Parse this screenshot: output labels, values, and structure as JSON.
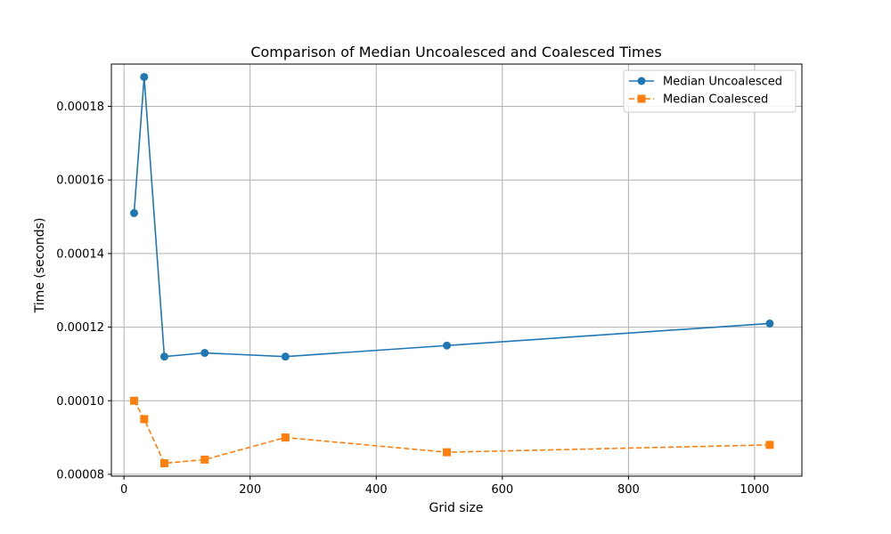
{
  "chart_data": {
    "type": "line",
    "title": "Comparison of Median Uncoalesced and Coalesced Times",
    "xlabel": "Grid size",
    "ylabel": "Time (seconds)",
    "xlim": [
      -20,
      1075
    ],
    "ylim": [
      7.95e-05,
      0.0001915
    ],
    "xticks": [
      0,
      200,
      400,
      600,
      800,
      1000
    ],
    "xtick_labels": [
      "0",
      "200",
      "400",
      "600",
      "800",
      "1000"
    ],
    "yticks": [
      8e-05,
      0.0001,
      0.00012,
      0.00014,
      0.00016,
      0.00018
    ],
    "ytick_labels": [
      "0.00008",
      "0.00010",
      "0.00012",
      "0.00014",
      "0.00016",
      "0.00018"
    ],
    "grid": true,
    "legend_position": "top-right",
    "series": [
      {
        "name": "Median Uncoalesced",
        "color": "#1f77b4",
        "marker": "circle",
        "line_style": "solid",
        "x": [
          16,
          32,
          64,
          128,
          256,
          512,
          1024
        ],
        "y": [
          0.000151,
          0.000188,
          0.000112,
          0.000113,
          0.000112,
          0.000115,
          0.000121
        ]
      },
      {
        "name": "Median Coalesced",
        "color": "#ff7f0e",
        "marker": "square",
        "line_style": "dashed",
        "x": [
          16,
          32,
          64,
          128,
          256,
          512,
          1024
        ],
        "y": [
          0.0001,
          9.5e-05,
          8.3e-05,
          8.4e-05,
          9e-05,
          8.6e-05,
          8.8e-05
        ]
      }
    ]
  }
}
